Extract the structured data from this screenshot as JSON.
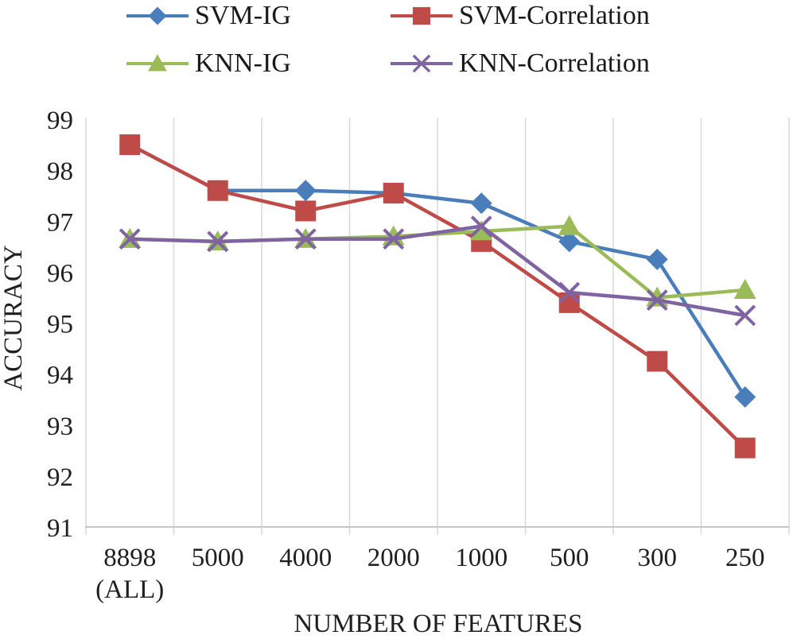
{
  "chart_data": {
    "type": "line",
    "title": "",
    "xlabel": "NUMBER OF FEATURES",
    "ylabel": "ACCURACY",
    "ylim": [
      91,
      99
    ],
    "ytick_step": 1,
    "grid": "vertical-only",
    "legend_position": "top-two-columns",
    "categories": [
      "8898 (ALL)",
      "5000",
      "4000",
      "2000",
      "1000",
      "500",
      "300",
      "250"
    ],
    "tick_lines": [
      [
        "8898",
        "(ALL)"
      ],
      [
        "5000"
      ],
      [
        "4000"
      ],
      [
        "2000"
      ],
      [
        "1000"
      ],
      [
        "500"
      ],
      [
        "300"
      ],
      [
        "250"
      ]
    ],
    "series": [
      {
        "name": "SVM-IG",
        "marker": "diamond",
        "color": "#4A7EBB",
        "values": [
          98.5,
          97.6,
          97.6,
          97.55,
          97.35,
          96.6,
          96.25,
          93.55
        ]
      },
      {
        "name": "SVM-Correlation",
        "marker": "square",
        "color": "#BE4B48",
        "values": [
          98.5,
          97.6,
          97.2,
          97.55,
          96.6,
          95.4,
          94.25,
          92.55
        ]
      },
      {
        "name": "KNN-IG",
        "marker": "triangle",
        "color": "#9BBB59",
        "values": [
          96.65,
          96.6,
          96.65,
          96.7,
          96.8,
          96.9,
          95.5,
          95.65
        ]
      },
      {
        "name": "KNN-Correlation",
        "marker": "x",
        "color": "#8064A2",
        "values": [
          96.65,
          96.6,
          96.65,
          96.65,
          96.9,
          95.6,
          95.45,
          95.15
        ]
      }
    ],
    "colors": {
      "axis_text": "#1f1f1f",
      "gridline": "#d9d9d9",
      "axis_line": "#c6c6c6",
      "background": "#ffffff"
    }
  }
}
